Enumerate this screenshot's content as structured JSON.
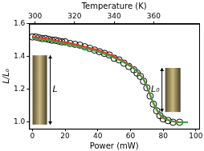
{
  "chart_data": {
    "type": "scatter",
    "x_label": "Power (mW)",
    "x2_label": "Temperature (K)",
    "y_label": "L/L₀",
    "xlim": [
      -2,
      102
    ],
    "xticks": [
      0,
      20,
      40,
      60,
      80,
      100
    ],
    "x2lim": [
      297,
      383
    ],
    "x2ticks": [
      300,
      320,
      340,
      360
    ],
    "ylim": [
      0.96,
      1.6
    ],
    "yticks": [
      {
        "value": 1,
        "label": "1.0"
      },
      1.2,
      1.4,
      1.6
    ],
    "grid": false,
    "legend": false,
    "annotations": [
      "L",
      "L₀"
    ],
    "series": [
      {
        "type": "line",
        "color": "#3aa040",
        "marker": "none",
        "line_style": "solid",
        "x": [
          0,
          8,
          16,
          24,
          32,
          40,
          48,
          54,
          60,
          64,
          68,
          70,
          72,
          74,
          76,
          78,
          80,
          84,
          90,
          95
        ],
        "values": [
          1.51,
          1.5,
          1.485,
          1.47,
          1.45,
          1.43,
          1.4,
          1.375,
          1.34,
          1.31,
          1.26,
          1.22,
          1.17,
          1.12,
          1.08,
          1.05,
          1.03,
          1.01,
          1.0,
          1.0
        ]
      },
      {
        "type": "line",
        "color": "#e8331c",
        "marker": "none",
        "line_style": "solid",
        "x": [
          0,
          8,
          16,
          24,
          32,
          40,
          48,
          54,
          60,
          64,
          68,
          70,
          72,
          74,
          76,
          78,
          80,
          84,
          90,
          95
        ],
        "values": [
          1.52,
          1.51,
          1.495,
          1.48,
          1.46,
          1.44,
          1.41,
          1.38,
          1.345,
          1.31,
          1.26,
          1.215,
          1.165,
          1.115,
          1.075,
          1.045,
          1.025,
          1.01,
          1.0,
          1.0
        ]
      },
      {
        "type": "scatter",
        "color": "#000000",
        "marker": "open_circle",
        "x": [
          0,
          2,
          4,
          6,
          8,
          10,
          12,
          14,
          16,
          18,
          20,
          23,
          26,
          29,
          32,
          35,
          38,
          41,
          44,
          47,
          50,
          53,
          56,
          59,
          62,
          64,
          66,
          68,
          70,
          72,
          74,
          76,
          78,
          80,
          83,
          86,
          90
        ],
        "values": [
          1.52,
          1.52,
          1.515,
          1.51,
          1.51,
          1.505,
          1.5,
          1.5,
          1.495,
          1.49,
          1.49,
          1.48,
          1.475,
          1.47,
          1.46,
          1.45,
          1.44,
          1.43,
          1.42,
          1.41,
          1.39,
          1.38,
          1.36,
          1.34,
          1.32,
          1.3,
          1.28,
          1.25,
          1.21,
          1.16,
          1.11,
          1.07,
          1.04,
          1.02,
          1.01,
          1.0,
          1.0
        ]
      }
    ]
  }
}
